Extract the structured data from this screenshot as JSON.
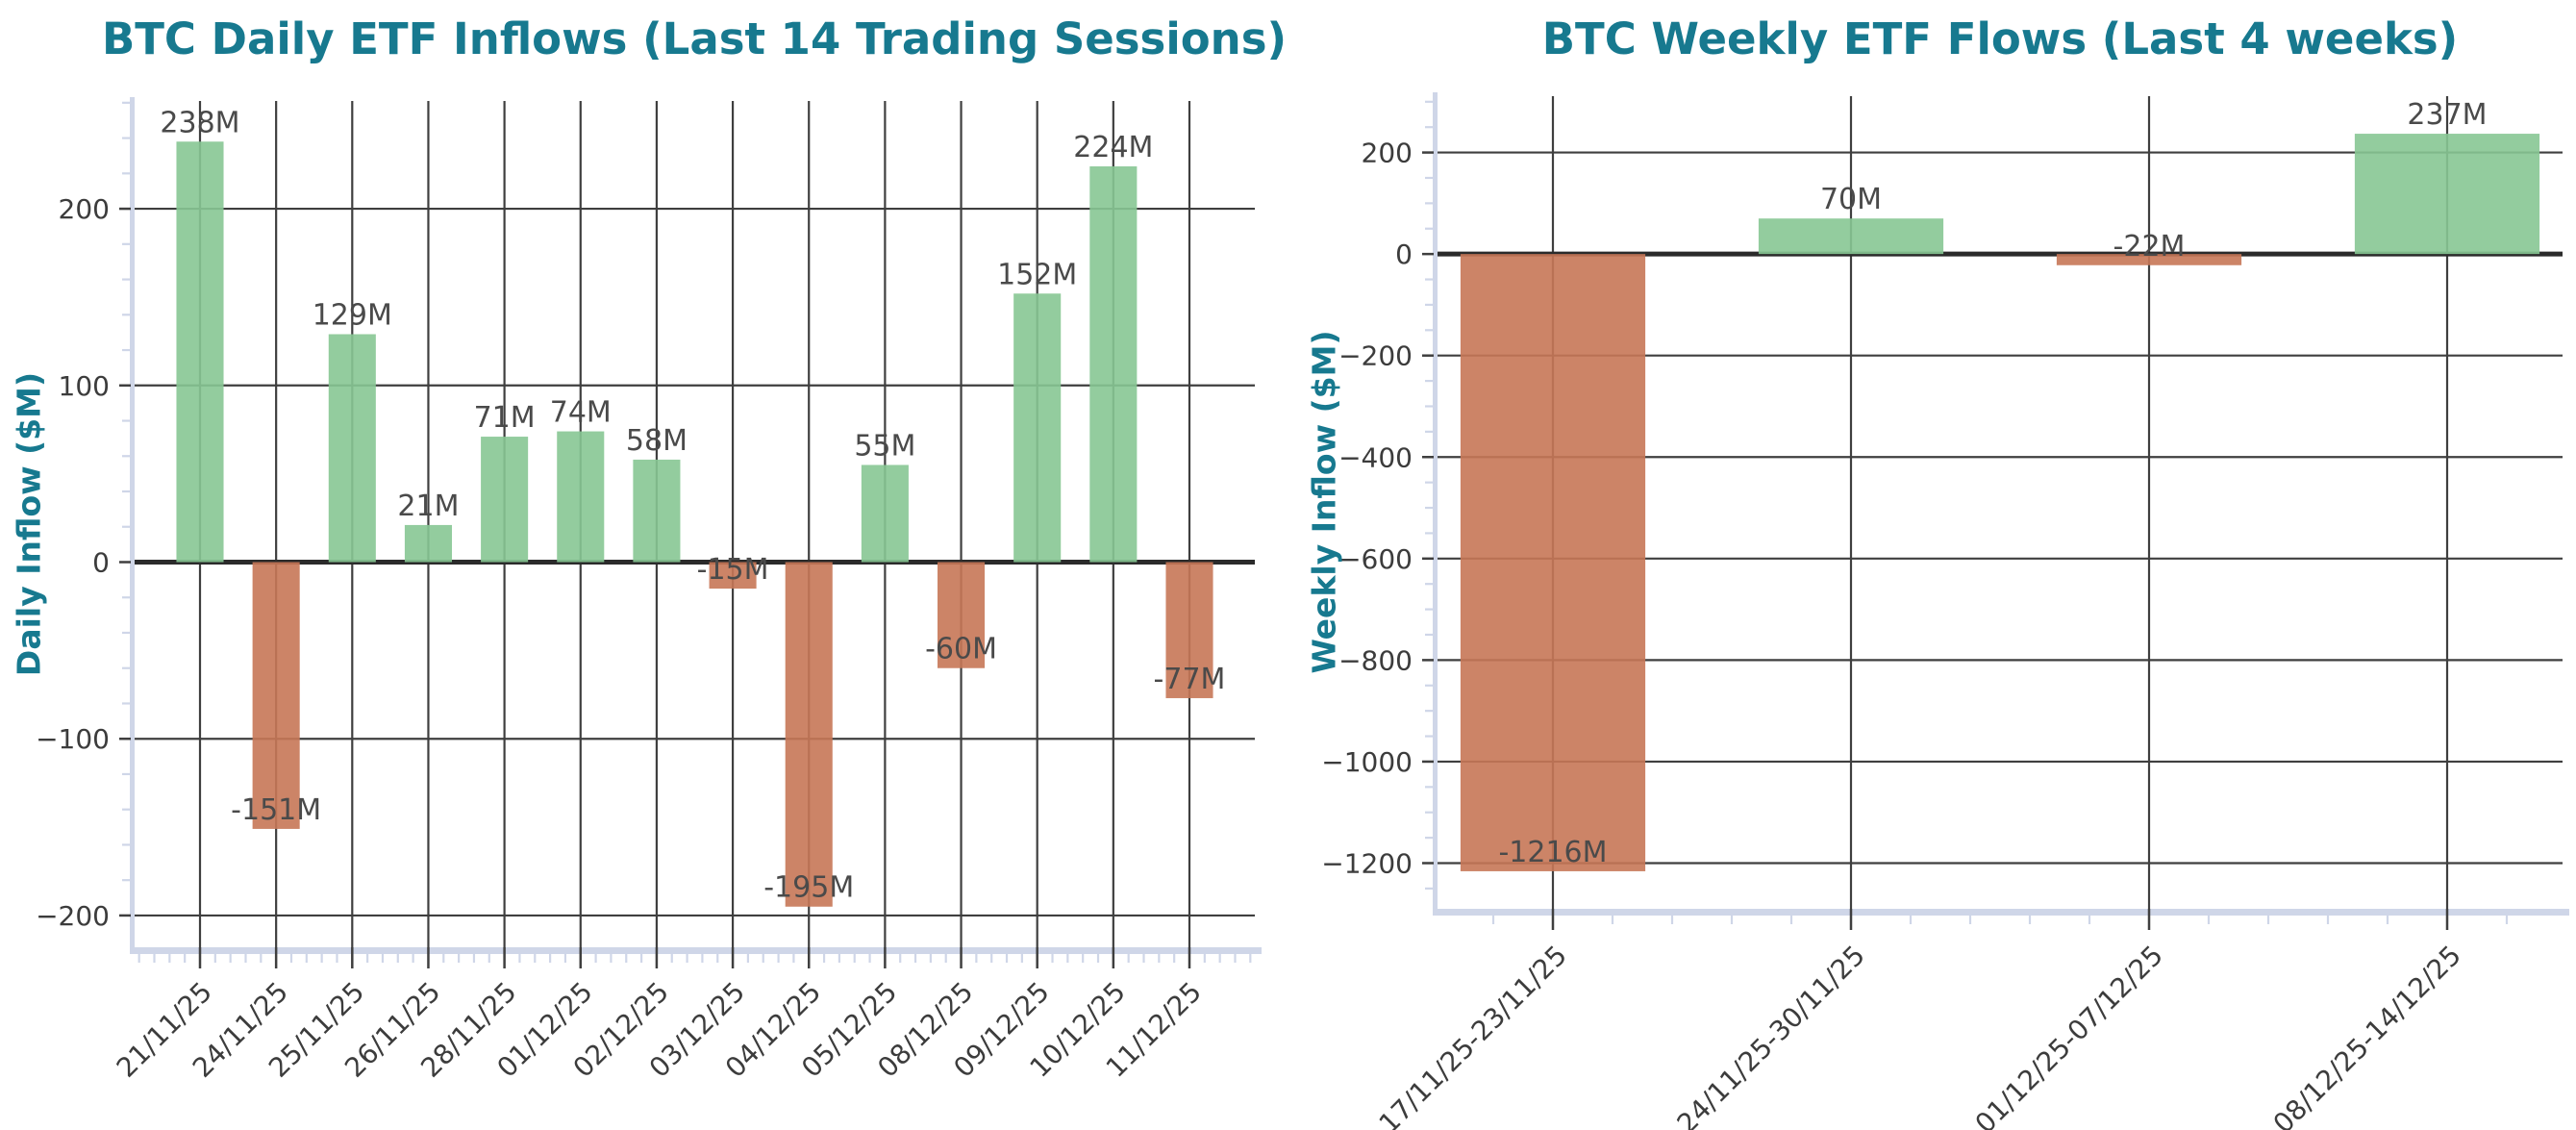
{
  "figure": {
    "background": "#ffffff",
    "title_color": "#17798f",
    "positive_color": "#87c694",
    "negative_color": "#c67757",
    "grid_color": "#3f3f3f",
    "zero_line_color": "#2b2b2b",
    "tick_label_color": "#3c3c3c",
    "bar_label_color": "#4a4a4a",
    "spine_color": "#cfd6e8"
  },
  "chart_data": [
    {
      "type": "bar",
      "title": "BTC Daily ETF Inflows (Last 14 Trading Sessions)",
      "xlabel": "",
      "ylabel": "Daily Inflow ($M)",
      "categories": [
        "21/11/25",
        "24/11/25",
        "25/11/25",
        "26/11/25",
        "28/11/25",
        "01/12/25",
        "02/12/25",
        "03/12/25",
        "04/12/25",
        "05/12/25",
        "08/12/25",
        "09/12/25",
        "10/12/25",
        "11/12/25"
      ],
      "values": [
        238,
        -151,
        129,
        21,
        71,
        74,
        58,
        -15,
        -195,
        55,
        -60,
        152,
        224,
        -77
      ],
      "bar_labels": [
        "238M",
        "-151M",
        "129M",
        "21M",
        "71M",
        "74M",
        "58M",
        "-15M",
        "-195M",
        "55M",
        "-60M",
        "152M",
        "224M",
        "-77M"
      ],
      "ytick_values": [
        -200,
        -100,
        0,
        100,
        200
      ],
      "ytick_labels": [
        "−200",
        "−100",
        "0",
        "100",
        "200"
      ],
      "ylim": [
        -218,
        261
      ],
      "grid": true,
      "legend": null,
      "x_tick_rotation_deg": 45
    },
    {
      "type": "bar",
      "title": "BTC Weekly ETF Flows (Last 4 weeks)",
      "xlabel": "",
      "ylabel": "Weekly Inflow ($M)",
      "categories": [
        "17/11/25-23/11/25",
        "24/11/25-30/11/25",
        "01/12/25-07/12/25",
        "08/12/25-14/12/25"
      ],
      "values": [
        -1216,
        70,
        -22,
        237
      ],
      "bar_labels": [
        "-1216M",
        "70M",
        "-22M",
        "237M"
      ],
      "ytick_values": [
        -1200,
        -1000,
        -800,
        -600,
        -400,
        -200,
        0,
        200
      ],
      "ytick_labels": [
        "−1200",
        "−1000",
        "−800",
        "−600",
        "−400",
        "−200",
        "0",
        "200"
      ],
      "ylim": [
        -1290,
        311
      ],
      "grid": true,
      "legend": null,
      "x_tick_rotation_deg": 45
    }
  ]
}
